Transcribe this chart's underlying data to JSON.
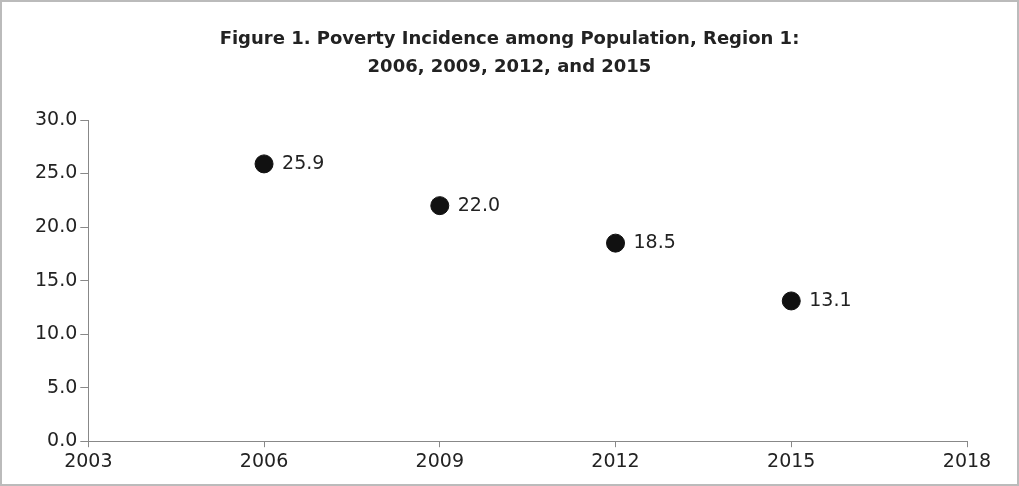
{
  "chart_data": {
    "type": "scatter",
    "title": "Figure 1. Poverty Incidence among Population, Region 1: 2006, 2009, 2012, and 2015",
    "x": [
      2006,
      2009,
      2012,
      2015
    ],
    "series": [
      {
        "color": "#111111",
        "values": [
          25.9,
          22.0,
          18.5,
          13.1
        ],
        "value_labels": [
          "25.9",
          "22.0",
          "18.5",
          "13.1"
        ]
      }
    ],
    "xlim": [
      2003,
      2018
    ],
    "xticks": [
      2003,
      2006,
      2009,
      2012,
      2015,
      2018
    ],
    "ylim": [
      0,
      30
    ],
    "yticks": [
      {
        "value": 0,
        "label": "0.0"
      },
      {
        "value": 5,
        "label": "5.0"
      },
      {
        "value": 10,
        "label": "10.0"
      },
      {
        "value": 15,
        "label": "15.0"
      },
      {
        "value": 20,
        "label": "20.0"
      },
      {
        "value": 25,
        "label": "25.0"
      },
      {
        "value": 30,
        "label": "30.0"
      }
    ],
    "marker": "circle",
    "grid": false,
    "legend": false
  }
}
